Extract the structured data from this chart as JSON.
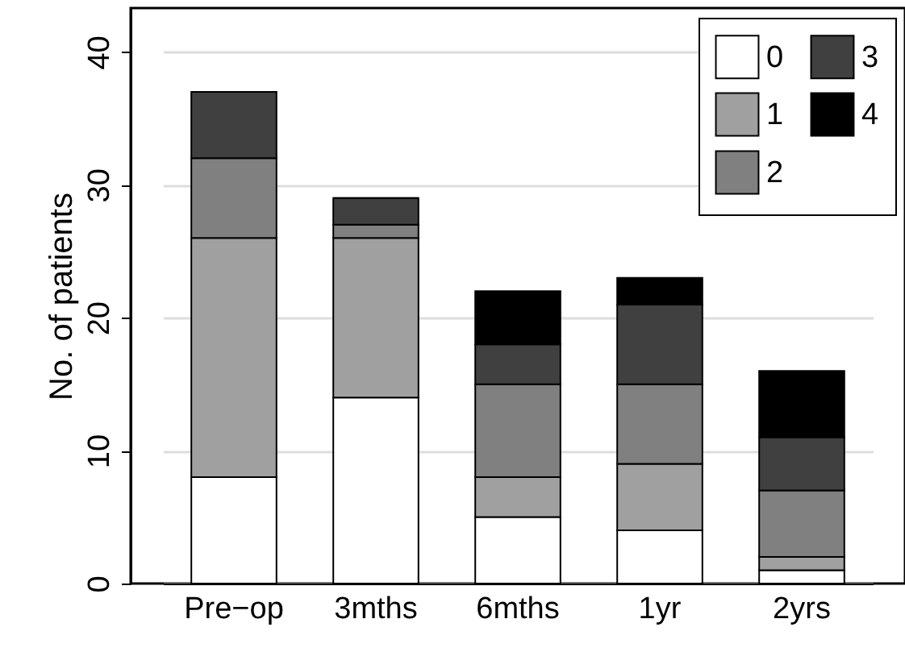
{
  "chart_data": {
    "type": "bar",
    "ylabel": "No. of patients",
    "categories": [
      "Pre−op",
      "3mths",
      "6mths",
      "1yr",
      "2yrs"
    ],
    "stacked": true,
    "series": [
      {
        "name": "0",
        "color": "#ffffff",
        "values": [
          8,
          14,
          5,
          4,
          1
        ]
      },
      {
        "name": "1",
        "color": "#a0a0a0",
        "values": [
          18,
          12,
          3,
          5,
          1
        ]
      },
      {
        "name": "2",
        "color": "#808080",
        "values": [
          6,
          1,
          7,
          6,
          5
        ]
      },
      {
        "name": "3",
        "color": "#404040",
        "values": [
          5,
          2,
          3,
          6,
          4
        ]
      },
      {
        "name": "4",
        "color": "#000000",
        "values": [
          0,
          0,
          4,
          2,
          5
        ]
      }
    ],
    "ylim": [
      0,
      43.3
    ],
    "yticks": [
      0,
      10,
      20,
      30,
      40
    ],
    "grid": "y",
    "legend": "top right"
  }
}
